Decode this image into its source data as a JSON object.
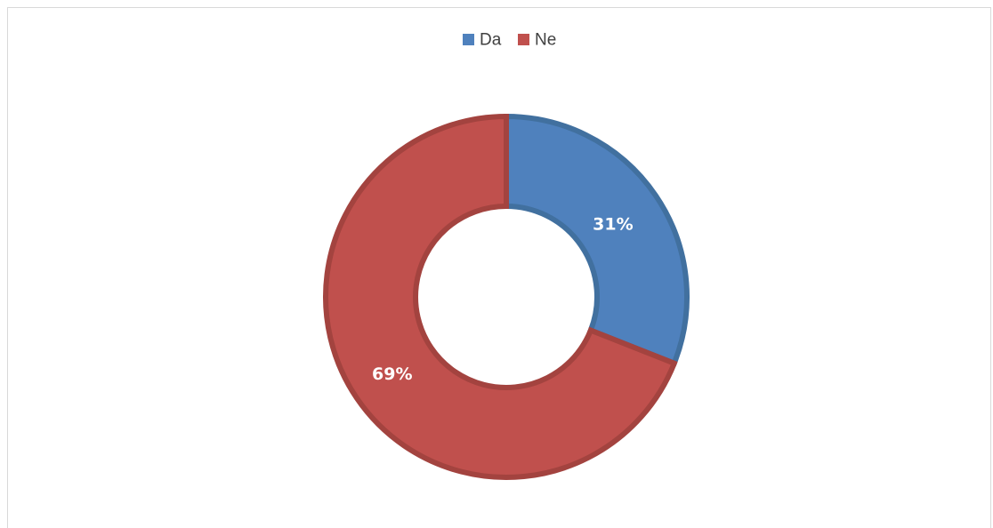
{
  "chart_data": {
    "type": "pie",
    "variant": "doughnut",
    "title": "",
    "legend_position": "top",
    "categories": [
      "Da",
      "Ne"
    ],
    "values": [
      31,
      69
    ],
    "data_labels": [
      "31%",
      "69%"
    ],
    "colors": [
      "#4f81bd",
      "#c0504d"
    ],
    "edge_colors": [
      "#41709f",
      "#a3433f"
    ]
  }
}
